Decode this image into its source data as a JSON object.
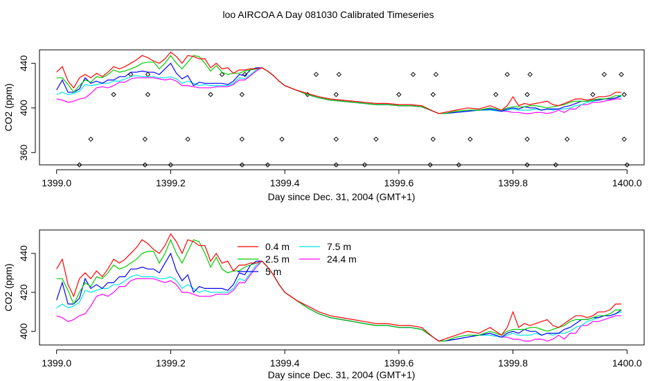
{
  "title": "loo AIRCOA A  Day 081030  Calibrated Timeseries",
  "colors": {
    "0.4 m": "#ff0000",
    "2.5 m": "#00cc00",
    "5 m": "#0000ff",
    "7.5 m": "#00e5e5",
    "24.4 m": "#ff00ff",
    "markers": "#000000"
  },
  "chart_data": [
    {
      "type": "line",
      "xlabel": "Day since Dec. 31, 2004 (GMT+1)",
      "ylabel": "CO2 (ppm)",
      "xlim": [
        1398.97,
        1400.03
      ],
      "ylim": [
        349,
        452
      ],
      "xticks": [
        1399.0,
        1399.2,
        1399.4,
        1399.6,
        1399.8,
        1400.0
      ],
      "xtick_labels": [
        "1399.0",
        "1399.2",
        "1399.4",
        "1399.6",
        "1399.8",
        "1400.0"
      ],
      "yticks": [
        360,
        400,
        440
      ],
      "ytick_labels": [
        "360",
        "400",
        "440"
      ],
      "series_ref": "shared",
      "scatter": {
        "x": [
          1399.04,
          1399.06,
          1399.1,
          1399.13,
          1399.155,
          1399.155,
          1399.16,
          1399.16,
          1399.2,
          1399.23,
          1399.27,
          1399.29,
          1399.325,
          1399.325,
          1399.325,
          1399.33,
          1399.37,
          1399.395,
          1399.44,
          1399.455,
          1399.49,
          1399.49,
          1399.49,
          1399.495,
          1399.54,
          1399.56,
          1399.6,
          1399.625,
          1399.655,
          1399.66,
          1399.66,
          1399.665,
          1399.705,
          1399.725,
          1399.77,
          1399.79,
          1399.825,
          1399.825,
          1399.825,
          1399.83,
          1399.875,
          1399.895,
          1399.94,
          1399.96,
          1399.99,
          1399.995,
          1399.995,
          1400.0
        ],
        "y": [
          349,
          372,
          412,
          430,
          349,
          372,
          412,
          430,
          349,
          372,
          412,
          430,
          349,
          372,
          412,
          430,
          349,
          372,
          412,
          430,
          349,
          372,
          412,
          430,
          349,
          372,
          412,
          430,
          349,
          372,
          412,
          430,
          349,
          372,
          412,
          430,
          349,
          372,
          412,
          430,
          349,
          372,
          412,
          430,
          430,
          412,
          372,
          349
        ]
      }
    },
    {
      "type": "line",
      "xlabel": "Day since Dec. 31, 2004 (GMT+1)",
      "ylabel": "CO2 (ppm)",
      "xlim": [
        1398.97,
        1400.03
      ],
      "ylim": [
        393,
        452
      ],
      "xticks": [
        1399.0,
        1399.2,
        1399.4,
        1399.6,
        1399.8,
        1400.0
      ],
      "xtick_labels": [
        "1399.0",
        "1399.2",
        "1399.4",
        "1399.6",
        "1399.8",
        "1400.0"
      ],
      "yticks": [
        400,
        420,
        440
      ],
      "ytick_labels": [
        "400",
        "420",
        "440"
      ],
      "series_ref": "shared",
      "legend": {
        "placement": "top-center",
        "entries": [
          "0.4 m",
          "2.5 m",
          "5 m",
          "7.5 m",
          "24.4 m"
        ]
      }
    }
  ],
  "series": [
    {
      "name": "0.4 m",
      "color": "#ff0000",
      "x": [
        1399.0,
        1399.01,
        1399.02,
        1399.03,
        1399.04,
        1399.05,
        1399.06,
        1399.07,
        1399.08,
        1399.09,
        1399.1,
        1399.11,
        1399.12,
        1399.13,
        1399.14,
        1399.15,
        1399.16,
        1399.17,
        1399.18,
        1399.19,
        1399.2,
        1399.21,
        1399.22,
        1399.23,
        1399.24,
        1399.25,
        1399.26,
        1399.27,
        1399.28,
        1399.29,
        1399.3,
        1399.31,
        1399.32,
        1399.33,
        1399.34,
        1399.35,
        1399.36,
        1399.37,
        1399.38,
        1399.39,
        1399.4,
        1399.42,
        1399.44,
        1399.46,
        1399.48,
        1399.5,
        1399.52,
        1399.54,
        1399.56,
        1399.58,
        1399.6,
        1399.62,
        1399.64,
        1399.66,
        1399.67,
        1399.68,
        1399.7,
        1399.72,
        1399.74,
        1399.76,
        1399.78,
        1399.79,
        1399.8,
        1399.81,
        1399.82,
        1399.83,
        1399.84,
        1399.85,
        1399.86,
        1399.87,
        1399.88,
        1399.89,
        1399.9,
        1399.91,
        1399.92,
        1399.93,
        1399.94,
        1399.95,
        1399.96,
        1399.97,
        1399.98,
        1399.99
      ],
      "y": [
        432,
        437,
        424,
        418,
        427,
        430,
        427,
        431,
        428,
        432,
        437,
        435,
        437,
        440,
        443,
        447,
        445,
        442,
        440,
        444,
        450,
        446,
        440,
        447,
        446,
        444,
        444,
        436,
        440,
        435,
        436,
        431,
        434,
        434,
        435,
        435,
        436,
        433,
        429,
        424,
        420,
        416,
        413,
        410,
        408,
        407,
        406,
        405,
        404,
        404,
        403,
        403,
        402,
        397,
        395,
        396,
        398,
        400,
        399,
        402,
        398,
        402,
        410,
        402,
        404,
        403,
        404,
        405,
        406,
        403,
        402,
        404,
        406,
        408,
        408,
        407,
        408,
        410,
        410,
        411,
        414,
        414
      ]
    },
    {
      "name": "2.5 m",
      "color": "#00cc00",
      "x": [
        1399.0,
        1399.01,
        1399.02,
        1399.03,
        1399.04,
        1399.05,
        1399.06,
        1399.07,
        1399.08,
        1399.09,
        1399.1,
        1399.11,
        1399.12,
        1399.13,
        1399.14,
        1399.15,
        1399.16,
        1399.17,
        1399.18,
        1399.19,
        1399.2,
        1399.21,
        1399.22,
        1399.23,
        1399.24,
        1399.25,
        1399.26,
        1399.27,
        1399.28,
        1399.29,
        1399.3,
        1399.31,
        1399.32,
        1399.33,
        1399.34,
        1399.35,
        1399.36,
        1399.37,
        1399.38,
        1399.39,
        1399.4,
        1399.42,
        1399.44,
        1399.46,
        1399.48,
        1399.5,
        1399.52,
        1399.54,
        1399.56,
        1399.58,
        1399.6,
        1399.62,
        1399.64,
        1399.66,
        1399.67,
        1399.68,
        1399.7,
        1399.72,
        1399.74,
        1399.76,
        1399.78,
        1399.79,
        1399.8,
        1399.81,
        1399.82,
        1399.83,
        1399.84,
        1399.85,
        1399.86,
        1399.87,
        1399.88,
        1399.89,
        1399.9,
        1399.91,
        1399.92,
        1399.93,
        1399.94,
        1399.95,
        1399.96,
        1399.97,
        1399.98,
        1399.99
      ],
      "y": [
        427,
        427,
        421,
        414,
        420,
        425,
        423,
        428,
        427,
        430,
        434,
        432,
        433,
        435,
        437,
        440,
        441,
        441,
        435,
        440,
        447,
        440,
        435,
        441,
        447,
        446,
        440,
        433,
        438,
        432,
        430,
        431,
        431,
        433,
        434,
        435,
        436,
        433,
        429,
        424,
        420,
        416,
        412,
        409,
        407,
        406,
        405,
        404,
        403,
        403,
        402,
        402,
        401,
        397,
        395,
        395,
        397,
        398,
        398,
        400,
        398,
        400,
        401,
        401,
        401,
        402,
        402,
        401,
        400,
        401,
        402,
        403,
        405,
        406,
        406,
        406,
        407,
        408,
        408,
        409,
        411,
        411
      ]
    },
    {
      "name": "5 m",
      "color": "#0000ff",
      "x": [
        1399.0,
        1399.01,
        1399.02,
        1399.03,
        1399.04,
        1399.05,
        1399.06,
        1399.07,
        1399.08,
        1399.09,
        1399.1,
        1399.11,
        1399.12,
        1399.13,
        1399.14,
        1399.15,
        1399.16,
        1399.17,
        1399.18,
        1399.19,
        1399.2,
        1399.21,
        1399.22,
        1399.23,
        1399.24,
        1399.25,
        1399.26,
        1399.27,
        1399.28,
        1399.29,
        1399.3,
        1399.31,
        1399.32,
        1399.33,
        1399.34,
        1399.35,
        1399.36,
        1399.37,
        1399.38,
        1399.39,
        1399.4,
        1399.42,
        1399.44,
        1399.46,
        1399.48,
        1399.5,
        1399.52,
        1399.54,
        1399.56,
        1399.58,
        1399.6,
        1399.62,
        1399.64,
        1399.66,
        1399.67,
        1399.68,
        1399.7,
        1399.72,
        1399.74,
        1399.76,
        1399.78,
        1399.79,
        1399.8,
        1399.81,
        1399.82,
        1399.83,
        1399.84,
        1399.85,
        1399.86,
        1399.87,
        1399.88,
        1399.89,
        1399.9,
        1399.91,
        1399.92,
        1399.93,
        1399.94,
        1399.95,
        1399.96,
        1399.97,
        1399.98,
        1399.99
      ],
      "y": [
        416,
        425,
        414,
        414,
        417,
        427,
        422,
        424,
        422,
        425,
        425,
        428,
        428,
        432,
        432,
        433,
        432,
        432,
        430,
        435,
        440,
        431,
        426,
        429,
        420,
        423,
        422,
        422,
        422,
        422,
        421,
        424,
        430,
        429,
        434,
        436,
        436,
        433,
        429,
        424,
        420,
        416,
        412,
        409,
        407,
        406,
        405,
        404,
        403,
        403,
        402,
        402,
        401,
        397,
        395,
        395,
        396,
        397,
        398,
        399,
        397,
        399,
        400,
        399,
        401,
        400,
        400,
        398,
        399,
        399,
        399,
        401,
        402,
        404,
        406,
        406,
        407,
        407,
        408,
        408,
        409,
        411
      ]
    },
    {
      "name": "7.5 m",
      "color": "#00e5e5",
      "x": [
        1399.0,
        1399.01,
        1399.02,
        1399.03,
        1399.04,
        1399.05,
        1399.06,
        1399.07,
        1399.08,
        1399.09,
        1399.1,
        1399.11,
        1399.12,
        1399.13,
        1399.14,
        1399.15,
        1399.16,
        1399.17,
        1399.18,
        1399.19,
        1399.2,
        1399.21,
        1399.22,
        1399.23,
        1399.24,
        1399.25,
        1399.26,
        1399.27,
        1399.28,
        1399.29,
        1399.3,
        1399.31,
        1399.32,
        1399.33,
        1399.34,
        1399.35,
        1399.36,
        1399.37,
        1399.38,
        1399.39,
        1399.4,
        1399.42,
        1399.44,
        1399.46,
        1399.48,
        1399.5,
        1399.52,
        1399.54,
        1399.56,
        1399.58,
        1399.6,
        1399.62,
        1399.64,
        1399.66,
        1399.67,
        1399.68,
        1399.7,
        1399.72,
        1399.74,
        1399.76,
        1399.78,
        1399.79,
        1399.8,
        1399.81,
        1399.82,
        1399.83,
        1399.84,
        1399.85,
        1399.86,
        1399.87,
        1399.88,
        1399.89,
        1399.9,
        1399.91,
        1399.92,
        1399.93,
        1399.94,
        1399.95,
        1399.96,
        1399.97,
        1399.98,
        1399.99
      ],
      "y": [
        412,
        414,
        412,
        413,
        415,
        421,
        420,
        421,
        422,
        422,
        424,
        424,
        426,
        428,
        429,
        428,
        428,
        428,
        427,
        427,
        428,
        426,
        422,
        424,
        422,
        420,
        421,
        420,
        420,
        420,
        420,
        422,
        427,
        426,
        430,
        434,
        436,
        433,
        429,
        424,
        420,
        416,
        412,
        409,
        407,
        406,
        405,
        404,
        403,
        403,
        402,
        402,
        401,
        397,
        395,
        395,
        396,
        397,
        398,
        398,
        397,
        398,
        399,
        398,
        398,
        398,
        399,
        398,
        399,
        398,
        399,
        399,
        400,
        402,
        403,
        405,
        406,
        407,
        408,
        408,
        409,
        410
      ]
    },
    {
      "name": "24.4 m",
      "color": "#ff00ff",
      "x": [
        1399.0,
        1399.01,
        1399.02,
        1399.03,
        1399.04,
        1399.05,
        1399.06,
        1399.07,
        1399.08,
        1399.09,
        1399.1,
        1399.11,
        1399.12,
        1399.13,
        1399.14,
        1399.15,
        1399.16,
        1399.17,
        1399.18,
        1399.19,
        1399.2,
        1399.21,
        1399.22,
        1399.23,
        1399.24,
        1399.25,
        1399.26,
        1399.27,
        1399.28,
        1399.29,
        1399.3,
        1399.31,
        1399.32,
        1399.33,
        1399.34,
        1399.35,
        1399.36,
        1399.37,
        1399.38,
        1399.39,
        1399.4,
        1399.42,
        1399.44,
        1399.46,
        1399.48,
        1399.5,
        1399.52,
        1399.54,
        1399.56,
        1399.58,
        1399.6,
        1399.62,
        1399.64,
        1399.66,
        1399.67,
        1399.68,
        1399.7,
        1399.72,
        1399.74,
        1399.76,
        1399.78,
        1399.79,
        1399.8,
        1399.81,
        1399.82,
        1399.83,
        1399.84,
        1399.85,
        1399.86,
        1399.87,
        1399.88,
        1399.89,
        1399.9,
        1399.91,
        1399.92,
        1399.93,
        1399.94,
        1399.95,
        1399.96,
        1399.97,
        1399.98,
        1399.99
      ],
      "y": [
        408,
        407,
        405,
        406,
        408,
        409,
        413,
        418,
        419,
        418,
        420,
        423,
        423,
        426,
        427,
        427,
        427,
        427,
        426,
        425,
        426,
        424,
        420,
        420,
        419,
        418,
        418,
        418,
        419,
        419,
        419,
        421,
        425,
        425,
        429,
        433,
        436,
        433,
        429,
        424,
        420,
        416,
        412,
        409,
        407,
        406,
        405,
        404,
        403,
        403,
        402,
        402,
        401,
        397,
        395,
        395,
        396,
        397,
        398,
        398,
        397,
        397,
        396,
        396,
        395,
        395,
        396,
        396,
        395,
        396,
        398,
        396,
        399,
        399,
        403,
        403,
        405,
        405,
        406,
        407,
        408,
        408
      ]
    }
  ]
}
